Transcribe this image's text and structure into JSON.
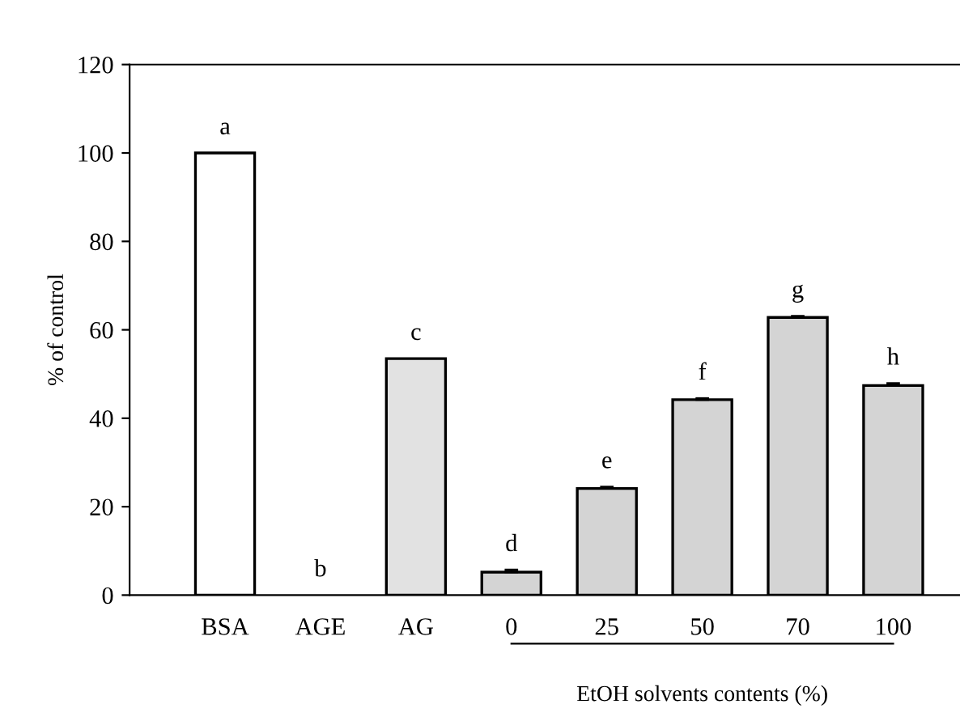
{
  "chart_data": {
    "type": "bar",
    "ylabel": "% of control",
    "xlabel": "EtOH solvents contents (%)",
    "categories": [
      "BSA",
      "AGE",
      "AG",
      "0",
      "25",
      "50",
      "70",
      "100"
    ],
    "values": [
      100,
      0,
      53.5,
      5.2,
      24.1,
      44.2,
      62.8,
      47.4
    ],
    "errors": [
      null,
      null,
      null,
      0.5,
      0.4,
      0.3,
      0.3,
      0.5
    ],
    "colors": [
      "#ffffff",
      "#ffffff",
      "#e2e2e2",
      "#d4d4d4",
      "#d4d4d4",
      "#d4d4d4",
      "#d4d4d4",
      "#d4d4d4"
    ],
    "ylim": [
      0,
      120
    ],
    "yticks": [
      0,
      20,
      40,
      60,
      80,
      100,
      120
    ],
    "grid": false,
    "legend": false,
    "annotations": [
      {
        "text": "a",
        "x": "BSA",
        "y": 100
      },
      {
        "text": "b",
        "x": "AGE",
        "y": 0
      },
      {
        "text": "c",
        "x": "AG",
        "y": 53.5
      },
      {
        "text": "d",
        "x": "0",
        "y": 5.2
      },
      {
        "text": "e",
        "x": "25",
        "y": 24.1
      },
      {
        "text": "f",
        "x": "50",
        "y": 44.2
      },
      {
        "text": "g",
        "x": "70",
        "y": 62.8
      },
      {
        "text": "h",
        "x": "100",
        "y": 47.4
      }
    ]
  }
}
